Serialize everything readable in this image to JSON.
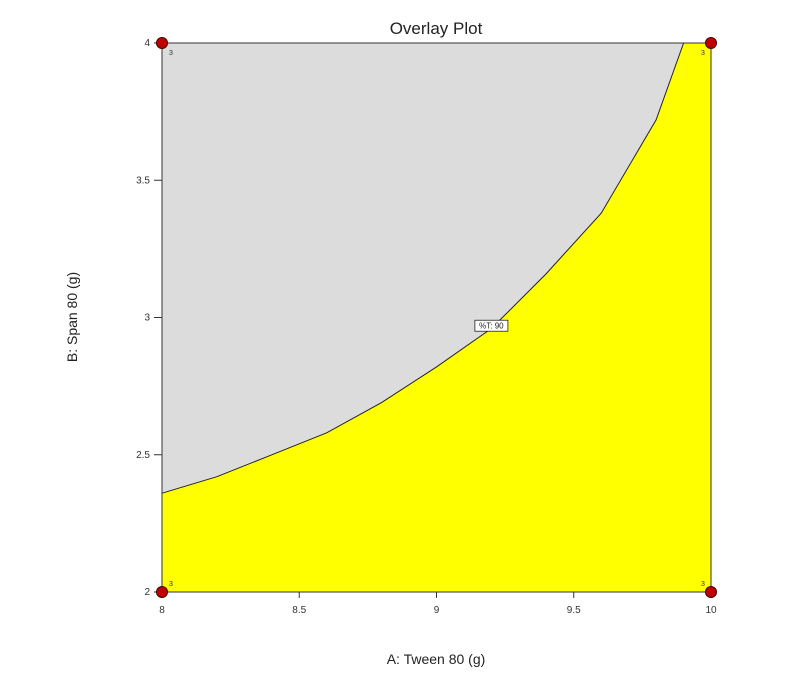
{
  "chart_data": {
    "type": "contour",
    "title": "Overlay Plot",
    "xlabel": "A: Tween 80 (g)",
    "ylabel": "B: Span 80 (g)",
    "xlim": [
      8,
      10
    ],
    "ylim": [
      2,
      4
    ],
    "xticks": [
      8,
      8.5,
      9,
      9.5,
      10
    ],
    "xtick_labels": [
      "8",
      "8.5",
      "9",
      "9.5",
      "10"
    ],
    "yticks": [
      2,
      2.5,
      3,
      3.5,
      4
    ],
    "yticks_labels": [
      "2",
      "2.5",
      "3",
      "3.5",
      "4"
    ],
    "contour": {
      "label": "%T: 90",
      "label_position": {
        "x": 9.2,
        "y": 2.97
      },
      "points": [
        {
          "x": 8.0,
          "y": 2.36
        },
        {
          "x": 8.2,
          "y": 2.42
        },
        {
          "x": 8.4,
          "y": 2.5
        },
        {
          "x": 8.6,
          "y": 2.58
        },
        {
          "x": 8.8,
          "y": 2.69
        },
        {
          "x": 9.0,
          "y": 2.82
        },
        {
          "x": 9.2,
          "y": 2.96
        },
        {
          "x": 9.4,
          "y": 3.16
        },
        {
          "x": 9.6,
          "y": 3.38
        },
        {
          "x": 9.8,
          "y": 3.72
        },
        {
          "x": 9.9,
          "y": 4.0
        }
      ]
    },
    "regions": {
      "feasible_color": "#ffff00",
      "infeasible_color": "#dcdcdc"
    },
    "design_points": [
      {
        "x": 8,
        "y": 2,
        "count_label": "3"
      },
      {
        "x": 8,
        "y": 4,
        "count_label": "3"
      },
      {
        "x": 10,
        "y": 2,
        "count_label": "3"
      },
      {
        "x": 10,
        "y": 4,
        "count_label": "3"
      }
    ],
    "design_point_color": "#c00000"
  }
}
